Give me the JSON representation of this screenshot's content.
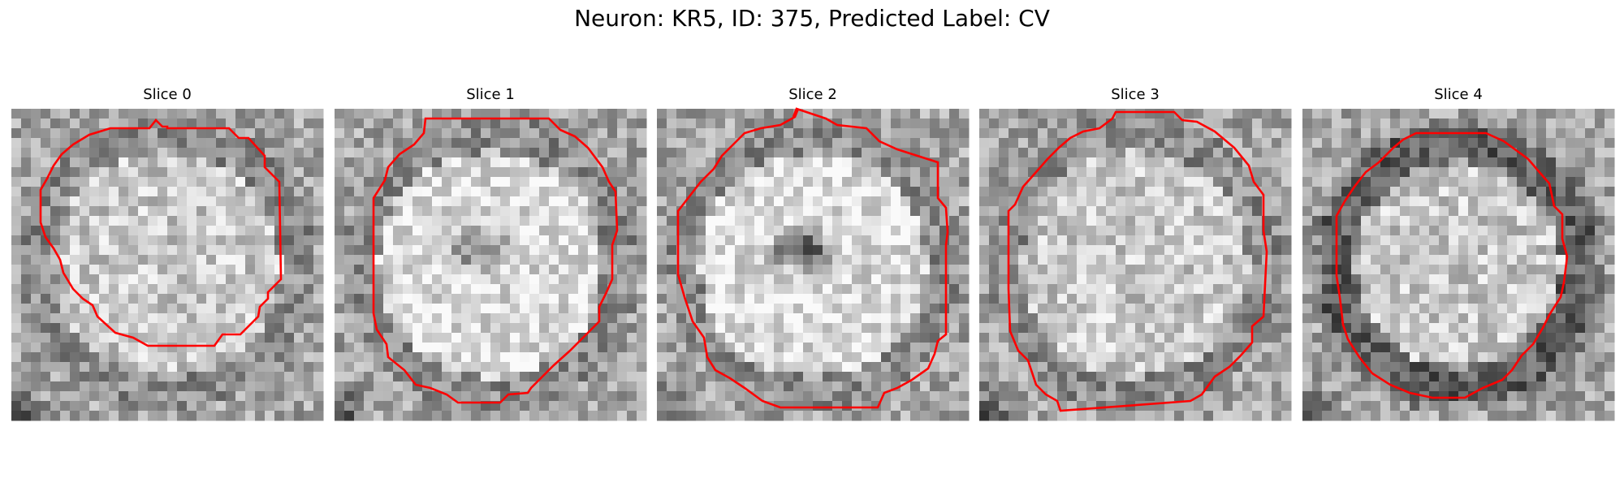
{
  "figure": {
    "title": "Neuron: KR5, ID: 375, Predicted Label: CV"
  },
  "panels": [
    {
      "title": "Slice 0",
      "seed": 11,
      "center": "bright",
      "outline_color": "#ff0000"
    },
    {
      "title": "Slice 1",
      "seed": 23,
      "center": "dark-nucleus",
      "outline_color": "#ff0000"
    },
    {
      "title": "Slice 2",
      "seed": 37,
      "center": "dark-nucleus-strong",
      "outline_color": "#ff0000"
    },
    {
      "title": "Slice 3",
      "seed": 49,
      "center": "bright",
      "outline_color": "#ff0000"
    },
    {
      "title": "Slice 4",
      "seed": 61,
      "center": "bright-ring",
      "outline_color": "#ff0000"
    }
  ]
}
